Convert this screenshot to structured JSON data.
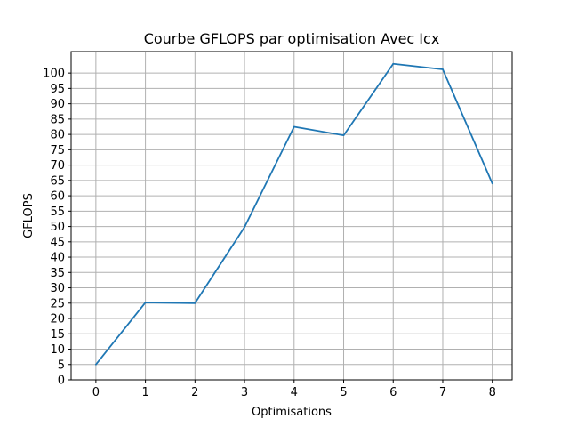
{
  "chart_data": {
    "type": "line",
    "title": "Courbe GFLOPS par optimisation Avec Icx",
    "xlabel": "Optimisations",
    "ylabel": "GFLOPS",
    "x": [
      0,
      1,
      2,
      3,
      4,
      5,
      6,
      7,
      8
    ],
    "series": [
      {
        "values": [
          5.0,
          25.2,
          25.0,
          49.8,
          82.5,
          79.7,
          103.0,
          101.2,
          64.0
        ]
      }
    ],
    "xticks": [
      "0",
      "1",
      "2",
      "3",
      "4",
      "5",
      "6",
      "7",
      "8"
    ],
    "yticks": [
      "0",
      "5",
      "10",
      "15",
      "20",
      "25",
      "30",
      "35",
      "40",
      "45",
      "50",
      "55",
      "60",
      "65",
      "70",
      "75",
      "80",
      "85",
      "90",
      "95",
      "100"
    ],
    "xlim": [
      -0.5,
      8.4
    ],
    "ylim": [
      0,
      107
    ],
    "grid": true,
    "line_color": "#1f77b4",
    "grid_color": "#b0b0b0"
  }
}
